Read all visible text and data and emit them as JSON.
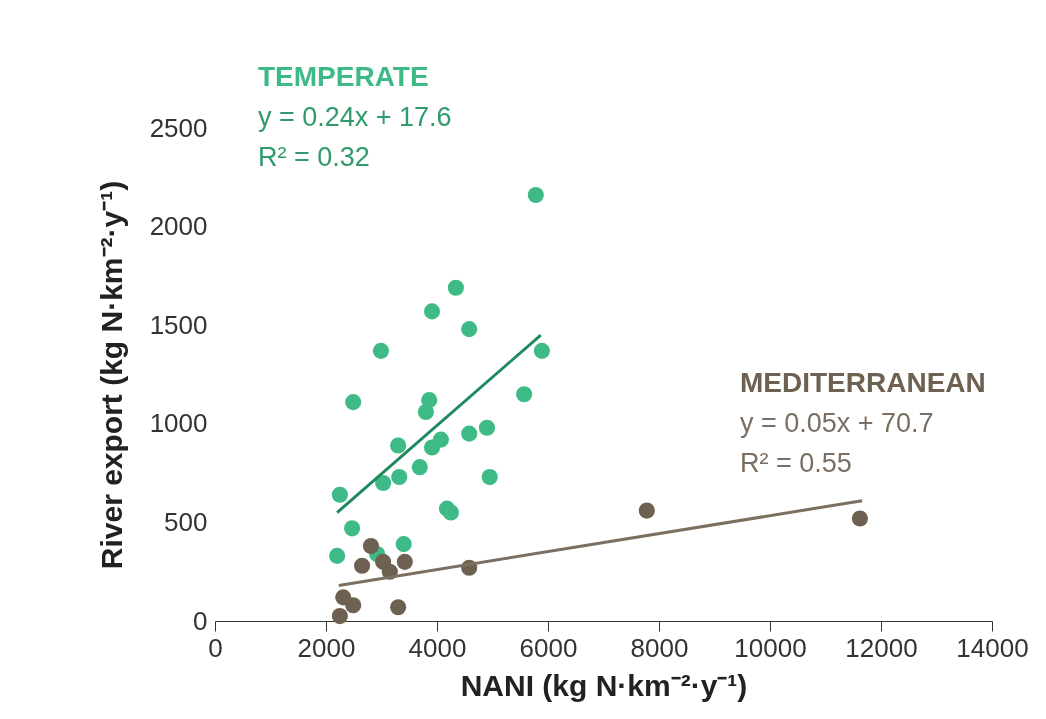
{
  "chart_data": {
    "type": "scatter",
    "xlabel": "NANI (kg N·km⁻²·y⁻¹)",
    "ylabel": "River export (kg N·km⁻²·y⁻¹)",
    "xlim": [
      0,
      14000
    ],
    "xticks": [
      0,
      2000,
      4000,
      6000,
      8000,
      10000,
      12000,
      14000
    ],
    "ylim": [
      0,
      2500
    ],
    "yticks": [
      0,
      500,
      1000,
      1500,
      2000,
      2500
    ],
    "grid": false,
    "annotations": [
      "y = 0.24x + 17.6",
      "R² = 0.32",
      "y = 0.05x + 70.7",
      "R² = 0.55"
    ],
    "series": [
      {
        "name": "TEMPERATE",
        "color": "#3dba86",
        "x": [
          5780,
          4340,
          3910,
          4580,
          2990,
          5890,
          2490,
          3860,
          3800,
          5570,
          3300,
          4070,
          3910,
          4580,
          4900,
          3690,
          3320,
          3030,
          4950,
          2250,
          4180,
          4250,
          2470,
          3400,
          2200,
          2920
        ],
        "values": [
          2160,
          1690,
          1570,
          1480,
          1370,
          1370,
          1110,
          1120,
          1060,
          1150,
          890,
          920,
          880,
          950,
          980,
          780,
          730,
          700,
          730,
          640,
          570,
          550,
          470,
          390,
          330,
          340
        ]
      },
      {
        "type": "line",
        "color": "#1f8a5e",
        "x": [
          2200,
          5870
        ],
        "values": [
          550,
          1450
        ]
      },
      {
        "name": "MEDITERRANEAN",
        "color": "#6e6152",
        "x": [
          2810,
          2650,
          3030,
          3150,
          3420,
          4580,
          2310,
          2490,
          2250,
          3300,
          7780,
          11620
        ],
        "values": [
          380,
          280,
          300,
          250,
          300,
          270,
          120,
          80,
          25,
          70,
          560,
          520
        ]
      },
      {
        "type": "line",
        "color": "#7d6f60",
        "x": [
          2230,
          11660
        ],
        "values": [
          180,
          610
        ]
      }
    ]
  }
}
